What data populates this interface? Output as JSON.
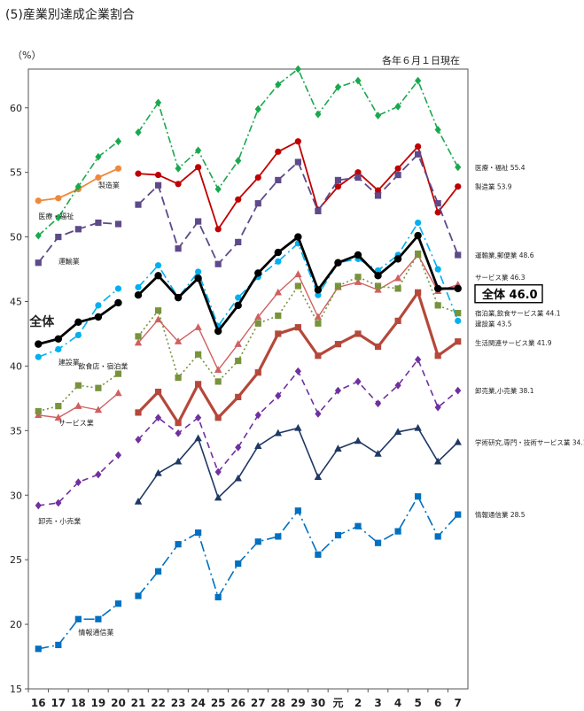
{
  "heading": "(5)産業別達成企業割合",
  "unit_label": "（%）",
  "note": "各年６月１日現在",
  "chart_data": {
    "type": "line",
    "title": "(5)産業別達成企業割合",
    "ylabel": "（%）",
    "xlabel": "",
    "ylim": [
      15,
      63
    ],
    "yticks": [
      15,
      20,
      25,
      30,
      35,
      40,
      45,
      50,
      55,
      60
    ],
    "grid": false,
    "x": [
      "16",
      "17",
      "18",
      "19",
      "20",
      "21",
      "22",
      "23",
      "24",
      "25",
      "26",
      "27",
      "28",
      "29",
      "30",
      "元",
      "2",
      "3",
      "4",
      "5",
      "6",
      "7"
    ],
    "series": [
      {
        "name": "全体",
        "color": "#000000",
        "marker": "circle",
        "dash": "",
        "width": 2.8,
        "values": [
          41.7,
          42.1,
          43.4,
          43.8,
          44.9,
          45.5,
          47.0,
          45.3,
          46.8,
          42.7,
          44.7,
          47.2,
          48.8,
          50.0,
          45.9,
          48.0,
          48.6,
          47.0,
          48.3,
          50.1,
          46.0,
          46.0
        ],
        "label": "全体",
        "end_label": "全体 46.0"
      },
      {
        "name": "製造業",
        "color": "#c00000",
        "marker": "circle",
        "dash": "",
        "width": 1.8,
        "values": [
          null,
          null,
          null,
          null,
          null,
          54.9,
          54.8,
          54.1,
          55.4,
          50.6,
          52.9,
          54.6,
          56.6,
          57.4,
          52.1,
          53.9,
          55.0,
          53.6,
          55.3,
          57.0,
          51.9,
          53.9
        ],
        "label": "製造業",
        "end_label": "製造業 53.9"
      },
      {
        "name": "製造業",
        "color": "#f0883a",
        "marker": "circle",
        "dash": "",
        "width": 1.8,
        "values": [
          52.8,
          53.0,
          53.7,
          54.6,
          55.3,
          null,
          null,
          null,
          null,
          null,
          null,
          null,
          null,
          null,
          null,
          null,
          null,
          null,
          null,
          null,
          null,
          null
        ],
        "label": "",
        "end_label": ""
      },
      {
        "name": "医療・福祉",
        "color": "#1aa84f",
        "marker": "diamond",
        "dash": "8,3,2,3",
        "width": 1.6,
        "values": [
          50.1,
          51.5,
          53.9,
          56.2,
          57.4,
          58.1,
          60.4,
          55.3,
          56.7,
          53.7,
          55.9,
          59.9,
          61.8,
          63.0,
          59.5,
          61.6,
          62.1,
          59.4,
          60.1,
          62.1,
          58.3,
          55.4
        ],
        "label": "医療・福祉",
        "end_label": "医療・福祉 55.4"
      },
      {
        "name": "運輸業",
        "color": "#5e4a8a",
        "marker": "square",
        "dash": "10,5",
        "width": 1.8,
        "values": [
          48.0,
          50.0,
          50.6,
          51.1,
          51.0,
          52.5,
          54.0,
          49.1,
          51.2,
          47.9,
          49.6,
          52.6,
          54.4,
          55.8,
          52.0,
          54.4,
          54.6,
          53.2,
          54.8,
          56.4,
          52.6,
          48.6
        ],
        "label": "運輸業",
        "end_label": "運輸業,郵便業 48.6"
      },
      {
        "name": "建設業",
        "color": "#00b0f0",
        "marker": "circle",
        "dash": "10,4,2,4",
        "width": 1.6,
        "values": [
          40.7,
          41.3,
          42.4,
          44.7,
          46.0,
          46.1,
          47.8,
          45.3,
          47.3,
          43.1,
          45.3,
          46.9,
          48.1,
          49.5,
          45.5,
          48.0,
          48.3,
          47.4,
          48.6,
          51.1,
          47.5,
          43.5
        ],
        "label": "建設業",
        "end_label": "建設業 43.5"
      },
      {
        "name": "サービス業",
        "color": "#d06060",
        "marker": "triangle",
        "dash": "",
        "width": 1.4,
        "values": [
          36.2,
          36.0,
          36.9,
          36.6,
          37.9,
          41.8,
          43.6,
          41.9,
          43.0,
          39.7,
          41.7,
          43.8,
          45.7,
          47.1,
          43.8,
          46.1,
          46.5,
          45.9,
          46.8,
          48.6,
          45.8,
          46.3
        ],
        "label": "サービス業",
        "end_label": "サービス業 46.3"
      },
      {
        "name": "飲食店・宿泊業",
        "color": "#77933c",
        "marker": "square",
        "dash": "2,3",
        "width": 1.6,
        "values": [
          36.5,
          36.9,
          38.5,
          38.3,
          39.4,
          42.3,
          44.3,
          39.1,
          40.9,
          38.8,
          40.4,
          43.3,
          43.9,
          46.2,
          43.3,
          46.2,
          46.9,
          46.2,
          46.0,
          48.7,
          44.7,
          44.1
        ],
        "label": "飲食店・宿泊業",
        "end_label": "宿泊業,飲食サービス業 44.1"
      },
      {
        "name": "生活関連サービス業",
        "color": "#b5483a",
        "marker": "square",
        "dash": "",
        "width": 3.2,
        "values": [
          null,
          null,
          null,
          null,
          null,
          36.4,
          38.0,
          35.6,
          38.6,
          36.0,
          37.6,
          39.5,
          42.5,
          43.0,
          40.8,
          41.7,
          42.5,
          41.5,
          43.5,
          45.7,
          40.8,
          41.9
        ],
        "label": "",
        "end_label": "生活関連サービス業 41.9"
      },
      {
        "name": "卸売・小売業",
        "color": "#7030a0",
        "marker": "diamond",
        "dash": "7,5",
        "width": 1.6,
        "values": [
          29.2,
          29.4,
          31.0,
          31.6,
          33.1,
          34.3,
          36.0,
          34.8,
          36.0,
          31.8,
          33.7,
          36.2,
          37.7,
          39.6,
          36.3,
          38.1,
          38.8,
          37.1,
          38.5,
          40.5,
          36.8,
          38.1
        ],
        "label": "卸売・小売業",
        "end_label": "卸売業,小売業 38.1"
      },
      {
        "name": "学術研究,専門・技術サービス業",
        "color": "#1f3864",
        "marker": "triangle",
        "dash": "",
        "width": 1.6,
        "values": [
          null,
          null,
          null,
          null,
          null,
          29.5,
          31.7,
          32.6,
          34.4,
          29.8,
          31.3,
          33.8,
          34.8,
          35.2,
          31.4,
          33.6,
          34.2,
          33.2,
          34.9,
          35.2,
          32.6,
          34.1
        ],
        "label": "",
        "end_label": "学術研究,専門・技術サービス業 34.1"
      },
      {
        "name": "情報通信業",
        "color": "#0070c0",
        "marker": "square",
        "dash": "12,4,2,4",
        "width": 1.6,
        "values": [
          18.1,
          18.4,
          20.4,
          20.4,
          21.6,
          22.2,
          24.1,
          26.2,
          27.1,
          22.1,
          24.7,
          26.4,
          26.8,
          28.8,
          25.4,
          26.9,
          27.6,
          26.3,
          27.2,
          29.9,
          26.8,
          28.5
        ],
        "label": "情報通信業",
        "end_label": "情報通信業 28.5"
      }
    ],
    "labels_left": [
      {
        "text": "全体",
        "x": "16",
        "y": 43.1,
        "bold": true
      },
      {
        "text": "製造業",
        "x": "19",
        "y": 53.8
      },
      {
        "text": "医療・福祉",
        "x": "16",
        "y": 51.4
      },
      {
        "text": "運輸業",
        "x": "17",
        "y": 47.9
      },
      {
        "text": "建設業",
        "x": "17",
        "y": 40.1
      },
      {
        "text": "飲食店・宿泊業",
        "x": "18",
        "y": 39.8
      },
      {
        "text": "サービス業",
        "x": "17",
        "y": 35.4
      },
      {
        "text": "卸売・小売業",
        "x": "16",
        "y": 27.8
      },
      {
        "text": "情報通信業",
        "x": "18",
        "y": 19.2
      }
    ],
    "labels_right": [
      {
        "text": "医療・福祉",
        "value": "55.4",
        "y": 55.4
      },
      {
        "text": "製造業",
        "value": "53.9",
        "y": 53.9
      },
      {
        "text": "運輸業,郵便業",
        "value": "48.6",
        "y": 48.6
      },
      {
        "text": "サービス業",
        "value": "46.3",
        "y": 46.9
      },
      {
        "text": "全体",
        "value": "46.0",
        "y": 45.6,
        "boxed": true
      },
      {
        "text": "宿泊業,飲食サービス業",
        "value": "44.1",
        "y": 44.1
      },
      {
        "text": "建設業",
        "value": "43.5",
        "y": 43.3
      },
      {
        "text": "生活関連サービス業",
        "value": "41.9",
        "y": 41.8
      },
      {
        "text": "卸売業,小売業",
        "value": "38.1",
        "y": 38.1
      },
      {
        "text": "学術研究,専門・技術サービス業",
        "value": "34.1",
        "y": 34.1
      },
      {
        "text": "情報通信業",
        "value": "28.5",
        "y": 28.5
      }
    ]
  }
}
